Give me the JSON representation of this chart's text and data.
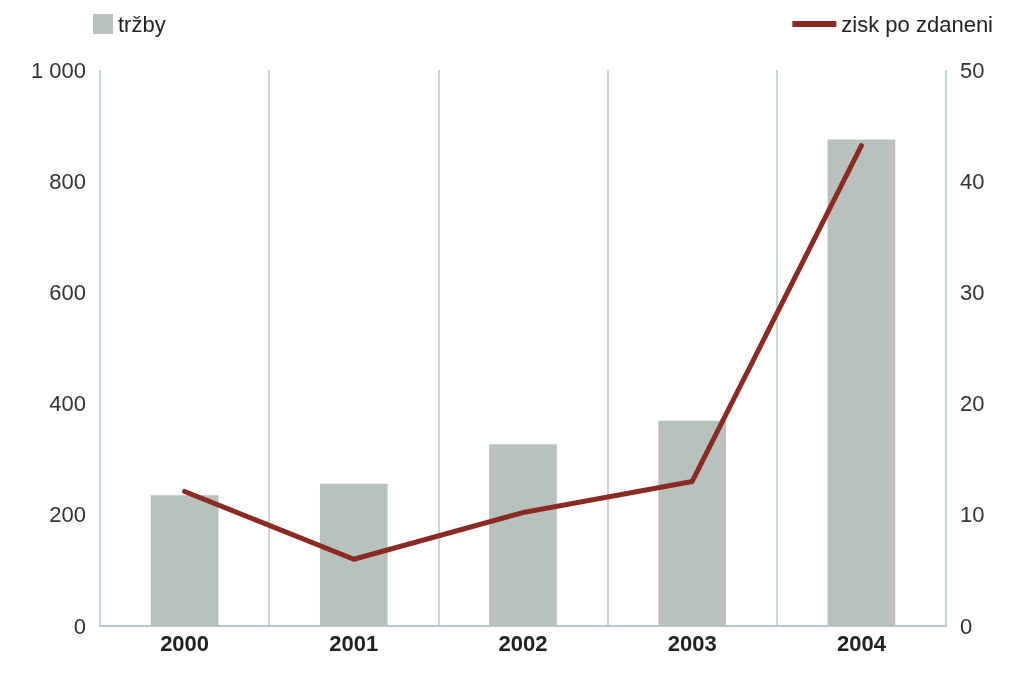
{
  "chart_data": {
    "type": "bar",
    "categories": [
      "2000",
      "2001",
      "2002",
      "2003",
      "2004"
    ],
    "series": [
      {
        "name": "tržby",
        "color": "#b9c1bc",
        "values": [
          235,
          256,
          327,
          369,
          875
        ]
      },
      {
        "name": "zisk po zdaneni",
        "type": "line",
        "axis": "y2",
        "color": "#8b2a22",
        "values": [
          12.1,
          6.0,
          10.2,
          13.0,
          43.2
        ]
      }
    ],
    "ylim": [
      0,
      1000
    ],
    "yticks": [
      0,
      200,
      400,
      600,
      800,
      {
        "value": 1000,
        "label": "1 000"
      }
    ],
    "y2lim": [
      0,
      50
    ],
    "y2ticks": [
      0,
      10,
      20,
      30,
      40,
      50
    ],
    "grid": "x",
    "legend": "top",
    "marker": "none",
    "line_style": "solid"
  }
}
